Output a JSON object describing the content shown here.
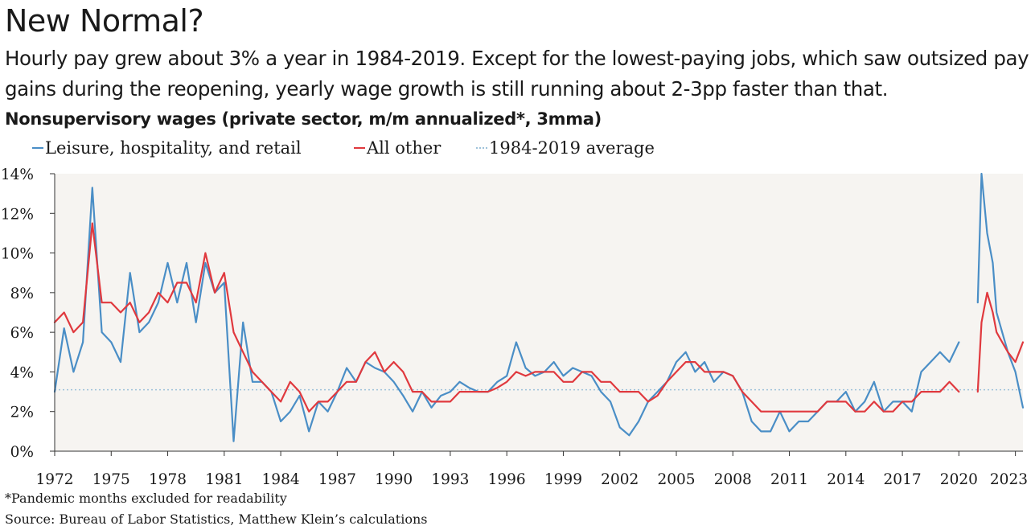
{
  "title": "New Normal?",
  "subtitle": "Hourly pay grew about 3% a year in 1984-2019. Except for the lowest-paying jobs, which saw outsized pay gains during the reopening, yearly wage growth is still running about 2-3pp faster than that.",
  "chart_title": "Nonsupervisory wages (private sector, m/m annualized*, 3mma)",
  "footnote": "*Pandemic months excluded for readability",
  "source": "Source: Bureau of Labor Statistics, Matthew Klein’s calculations",
  "colors": {
    "leisure": "#4a8ec6",
    "other": "#e0393e",
    "average": "#9ec2da",
    "plot_bg": "#f6f4f1"
  },
  "chart_data": {
    "type": "line",
    "x_unit": "year",
    "xlim": [
      1972,
      2023.4
    ],
    "ylim": [
      0,
      14
    ],
    "x_ticks": [
      1972,
      1975,
      1978,
      1981,
      1984,
      1987,
      1990,
      1993,
      1996,
      1999,
      2002,
      2005,
      2008,
      2011,
      2014,
      2017,
      2020,
      2023
    ],
    "x_tick_labels": [
      "1972",
      "1975",
      "1978",
      "1981",
      "1984",
      "1987",
      "1990",
      "1993",
      "1996",
      "1999",
      "2002",
      "2005",
      "2008",
      "2011",
      "2014",
      "2017",
      "2020",
      "2023"
    ],
    "y_ticks": [
      0,
      2,
      4,
      6,
      8,
      10,
      12,
      14
    ],
    "y_tick_labels": [
      "0%",
      "2%",
      "4%",
      "6%",
      "8%",
      "10%",
      "12%",
      "14%"
    ],
    "legend_position": "top",
    "grid": false,
    "pandemic_gap": [
      2020.1,
      2021.0
    ],
    "average": {
      "name": "1984-2019 average",
      "value": 3.1
    },
    "series": [
      {
        "name": "Leisure, hospitality, and retail",
        "color_key": "leisure",
        "x": [
          1972.0,
          1972.5,
          1973.0,
          1973.5,
          1974.0,
          1974.5,
          1975.0,
          1975.5,
          1976.0,
          1976.5,
          1977.0,
          1977.5,
          1978.0,
          1978.5,
          1979.0,
          1979.5,
          1980.0,
          1980.5,
          1981.0,
          1981.5,
          1982.0,
          1982.5,
          1983.0,
          1983.5,
          1984.0,
          1984.5,
          1985.0,
          1985.5,
          1986.0,
          1986.5,
          1987.0,
          1987.5,
          1988.0,
          1988.5,
          1989.0,
          1989.5,
          1990.0,
          1990.5,
          1991.0,
          1991.5,
          1992.0,
          1992.5,
          1993.0,
          1993.5,
          1994.0,
          1994.5,
          1995.0,
          1995.5,
          1996.0,
          1996.5,
          1997.0,
          1997.5,
          1998.0,
          1998.5,
          1999.0,
          1999.5,
          2000.0,
          2000.5,
          2001.0,
          2001.5,
          2002.0,
          2002.5,
          2003.0,
          2003.5,
          2004.0,
          2004.5,
          2005.0,
          2005.5,
          2006.0,
          2006.5,
          2007.0,
          2007.5,
          2008.0,
          2008.5,
          2009.0,
          2009.5,
          2010.0,
          2010.5,
          2011.0,
          2011.5,
          2012.0,
          2012.5,
          2013.0,
          2013.5,
          2014.0,
          2014.5,
          2015.0,
          2015.5,
          2016.0,
          2016.5,
          2017.0,
          2017.5,
          2018.0,
          2018.5,
          2019.0,
          2019.5,
          2020.0,
          2021.0,
          2021.2,
          2021.5,
          2021.8,
          2022.0,
          2022.3,
          2022.6,
          2023.0,
          2023.4
        ],
        "values": [
          3.0,
          6.2,
          4.0,
          5.5,
          13.3,
          6.0,
          5.5,
          4.5,
          9.0,
          6.0,
          6.5,
          7.5,
          9.5,
          7.5,
          9.5,
          6.5,
          9.5,
          8.0,
          8.5,
          0.5,
          6.5,
          3.5,
          3.5,
          3.0,
          1.5,
          2.0,
          2.8,
          1.0,
          2.5,
          2.0,
          3.0,
          4.2,
          3.5,
          4.5,
          4.2,
          4.0,
          3.5,
          2.8,
          2.0,
          3.0,
          2.2,
          2.8,
          3.0,
          3.5,
          3.2,
          3.0,
          3.0,
          3.5,
          3.8,
          5.5,
          4.2,
          3.8,
          4.0,
          4.5,
          3.8,
          4.2,
          4.0,
          3.8,
          3.0,
          2.5,
          1.2,
          0.8,
          1.5,
          2.5,
          3.0,
          3.5,
          4.5,
          5.0,
          4.0,
          4.5,
          3.5,
          4.0,
          3.8,
          3.0,
          1.5,
          1.0,
          1.0,
          2.0,
          1.0,
          1.5,
          1.5,
          2.0,
          2.5,
          2.5,
          3.0,
          2.0,
          2.5,
          3.5,
          2.0,
          2.5,
          2.5,
          2.0,
          4.0,
          4.5,
          5.0,
          4.5,
          5.5,
          7.5,
          14.0,
          11.0,
          9.5,
          7.0,
          6.0,
          5.0,
          4.0,
          2.2
        ]
      },
      {
        "name": "All other",
        "color_key": "other",
        "x": [
          1972.0,
          1972.5,
          1973.0,
          1973.5,
          1974.0,
          1974.5,
          1975.0,
          1975.5,
          1976.0,
          1976.5,
          1977.0,
          1977.5,
          1978.0,
          1978.5,
          1979.0,
          1979.5,
          1980.0,
          1980.5,
          1981.0,
          1981.5,
          1982.0,
          1982.5,
          1983.0,
          1983.5,
          1984.0,
          1984.5,
          1985.0,
          1985.5,
          1986.0,
          1986.5,
          1987.0,
          1987.5,
          1988.0,
          1988.5,
          1989.0,
          1989.5,
          1990.0,
          1990.5,
          1991.0,
          1991.5,
          1992.0,
          1992.5,
          1993.0,
          1993.5,
          1994.0,
          1994.5,
          1995.0,
          1995.5,
          1996.0,
          1996.5,
          1997.0,
          1997.5,
          1998.0,
          1998.5,
          1999.0,
          1999.5,
          2000.0,
          2000.5,
          2001.0,
          2001.5,
          2002.0,
          2002.5,
          2003.0,
          2003.5,
          2004.0,
          2004.5,
          2005.0,
          2005.5,
          2006.0,
          2006.5,
          2007.0,
          2007.5,
          2008.0,
          2008.5,
          2009.0,
          2009.5,
          2010.0,
          2010.5,
          2011.0,
          2011.5,
          2012.0,
          2012.5,
          2013.0,
          2013.5,
          2014.0,
          2014.5,
          2015.0,
          2015.5,
          2016.0,
          2016.5,
          2017.0,
          2017.5,
          2018.0,
          2018.5,
          2019.0,
          2019.5,
          2020.0,
          2021.0,
          2021.2,
          2021.5,
          2021.8,
          2022.0,
          2022.3,
          2022.6,
          2023.0,
          2023.4
        ],
        "values": [
          6.5,
          7.0,
          6.0,
          6.5,
          11.5,
          7.5,
          7.5,
          7.0,
          7.5,
          6.5,
          7.0,
          8.0,
          7.5,
          8.5,
          8.5,
          7.5,
          10.0,
          8.0,
          9.0,
          6.0,
          5.0,
          4.0,
          3.5,
          3.0,
          2.5,
          3.5,
          3.0,
          2.0,
          2.5,
          2.5,
          3.0,
          3.5,
          3.5,
          4.5,
          5.0,
          4.0,
          4.5,
          4.0,
          3.0,
          3.0,
          2.5,
          2.5,
          2.5,
          3.0,
          3.0,
          3.0,
          3.0,
          3.2,
          3.5,
          4.0,
          3.8,
          4.0,
          4.0,
          4.0,
          3.5,
          3.5,
          4.0,
          4.0,
          3.5,
          3.5,
          3.0,
          3.0,
          3.0,
          2.5,
          2.8,
          3.5,
          4.0,
          4.5,
          4.5,
          4.0,
          4.0,
          4.0,
          3.8,
          3.0,
          2.5,
          2.0,
          2.0,
          2.0,
          2.0,
          2.0,
          2.0,
          2.0,
          2.5,
          2.5,
          2.5,
          2.0,
          2.0,
          2.5,
          2.0,
          2.0,
          2.5,
          2.5,
          3.0,
          3.0,
          3.0,
          3.5,
          3.0,
          3.0,
          6.5,
          8.0,
          7.0,
          6.0,
          5.5,
          5.0,
          4.5,
          5.5
        ]
      }
    ]
  }
}
